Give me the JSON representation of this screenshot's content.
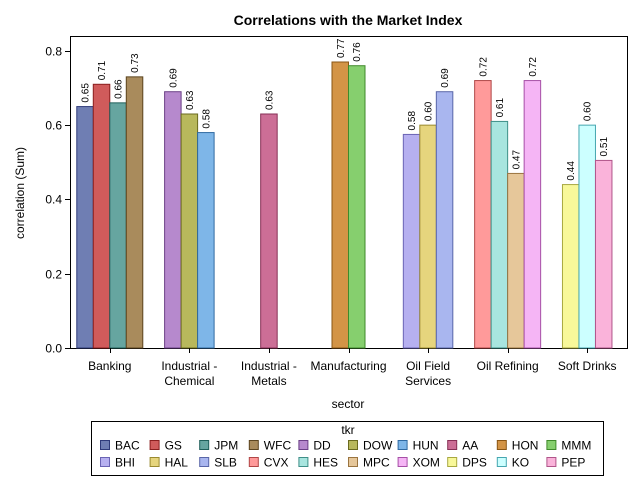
{
  "chart_data": {
    "type": "bar",
    "title": "Correlations with the Market Index",
    "xlabel": "sector",
    "ylabel": "correlation (Sum)",
    "ylim": [
      0,
      0.84
    ],
    "yticks": [
      "0.0",
      "0.2",
      "0.4",
      "0.6",
      "0.8"
    ],
    "ytick_values": [
      0,
      0.2,
      0.4,
      0.6,
      0.8
    ],
    "legend_title": "tkr",
    "legend_placement": "bottom",
    "grid": false,
    "categories": [
      {
        "label_lines": [
          "Banking"
        ],
        "bars": [
          {
            "tkr": "BAC",
            "value": 0.65,
            "label": "0.65"
          },
          {
            "tkr": "GS",
            "value": 0.71,
            "label": "0.71"
          },
          {
            "tkr": "JPM",
            "value": 0.66,
            "label": "0.66"
          },
          {
            "tkr": "WFC",
            "value": 0.73,
            "label": "0.73"
          }
        ]
      },
      {
        "label_lines": [
          "Industrial -",
          "Chemical"
        ],
        "bars": [
          {
            "tkr": "DD",
            "value": 0.69,
            "label": "0.69"
          },
          {
            "tkr": "DOW",
            "value": 0.63,
            "label": "0.63"
          },
          {
            "tkr": "HUN",
            "value": 0.58,
            "label": "0.58"
          }
        ]
      },
      {
        "label_lines": [
          "Industrial -",
          "Metals"
        ],
        "bars": [
          {
            "tkr": "AA",
            "value": 0.63,
            "label": "0.63"
          }
        ]
      },
      {
        "label_lines": [
          "Manufacturing"
        ],
        "bars": [
          {
            "tkr": "HON",
            "value": 0.77,
            "label": "0.77"
          },
          {
            "tkr": "MMM",
            "value": 0.76,
            "label": "0.76"
          }
        ]
      },
      {
        "label_lines": [
          "Oil Field",
          "Services"
        ],
        "bars": [
          {
            "tkr": "BHI",
            "value": 0.575,
            "label": "0.58"
          },
          {
            "tkr": "HAL",
            "value": 0.6,
            "label": "0.60"
          },
          {
            "tkr": "SLB",
            "value": 0.69,
            "label": "0.69"
          }
        ]
      },
      {
        "label_lines": [
          "Oil Refining"
        ],
        "bars": [
          {
            "tkr": "CVX",
            "value": 0.72,
            "label": "0.72"
          },
          {
            "tkr": "HES",
            "value": 0.61,
            "label": "0.61"
          },
          {
            "tkr": "MPC",
            "value": 0.47,
            "label": "0.47"
          },
          {
            "tkr": "XOM",
            "value": 0.72,
            "label": "0.72"
          }
        ]
      },
      {
        "label_lines": [
          "Soft Drinks"
        ],
        "bars": [
          {
            "tkr": "DPS",
            "value": 0.44,
            "label": "0.44"
          },
          {
            "tkr": "KO",
            "value": 0.6,
            "label": "0.60"
          },
          {
            "tkr": "PEP",
            "value": 0.505,
            "label": "0.51"
          }
        ]
      }
    ],
    "legend": [
      {
        "tkr": "BAC",
        "fill": "#6f7eb3",
        "stroke": "#2f3b7a"
      },
      {
        "tkr": "GS",
        "fill": "#d05b5b",
        "stroke": "#8a1f1f"
      },
      {
        "tkr": "JPM",
        "fill": "#66a5a0",
        "stroke": "#1f5f5a"
      },
      {
        "tkr": "WFC",
        "fill": "#a98b5c",
        "stroke": "#5c4520"
      },
      {
        "tkr": "DD",
        "fill": "#b689cd",
        "stroke": "#6a3f86"
      },
      {
        "tkr": "DOW",
        "fill": "#b8b85c",
        "stroke": "#6a6a1f"
      },
      {
        "tkr": "HUN",
        "fill": "#7eb6e8",
        "stroke": "#2f6aa2"
      },
      {
        "tkr": "AA",
        "fill": "#cc6e96",
        "stroke": "#862f55"
      },
      {
        "tkr": "HON",
        "fill": "#d39446",
        "stroke": "#8a5614"
      },
      {
        "tkr": "MMM",
        "fill": "#86cf6e",
        "stroke": "#3f8a2a"
      },
      {
        "tkr": "BHI",
        "fill": "#b6b0f0",
        "stroke": "#6a64b4"
      },
      {
        "tkr": "HAL",
        "fill": "#e6d57d",
        "stroke": "#9a8a30"
      },
      {
        "tkr": "SLB",
        "fill": "#a9b6ef",
        "stroke": "#5966a8"
      },
      {
        "tkr": "CVX",
        "fill": "#ff9a9a",
        "stroke": "#b04646"
      },
      {
        "tkr": "HES",
        "fill": "#a8e5df",
        "stroke": "#3f8f88"
      },
      {
        "tkr": "MPC",
        "fill": "#e6c79a",
        "stroke": "#9a7440"
      },
      {
        "tkr": "XOM",
        "fill": "#f5b5f5",
        "stroke": "#a64fa6"
      },
      {
        "tkr": "DPS",
        "fill": "#f8f89a",
        "stroke": "#a8a840"
      },
      {
        "tkr": "KO",
        "fill": "#ccffff",
        "stroke": "#46a6b0"
      },
      {
        "tkr": "PEP",
        "fill": "#fab3da",
        "stroke": "#b0558a"
      }
    ]
  }
}
